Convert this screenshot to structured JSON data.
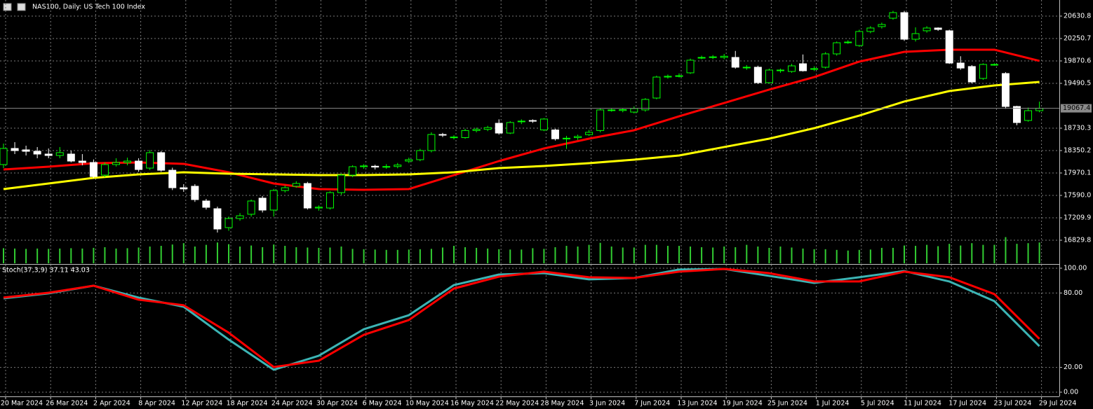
{
  "chart_data": [
    {
      "type": "candlestick",
      "title": "NAS100, Daily:  US Tech 100 Index",
      "categories": [
        "20 Mar 2024",
        null,
        null,
        null,
        "26 Mar 2024",
        null,
        null,
        null,
        "2 Apr 2024",
        null,
        null,
        null,
        "8 Apr 2024",
        null,
        null,
        null,
        "12 Apr 2024",
        null,
        null,
        null,
        "18 Apr 2024",
        null,
        null,
        null,
        "24 Apr 2024",
        null,
        null,
        null,
        "30 Apr 2024",
        null,
        null,
        null,
        "6 May 2024",
        null,
        null,
        null,
        "10 May 2024",
        null,
        null,
        null,
        "16 May 2024",
        null,
        null,
        null,
        "22 May 2024",
        null,
        null,
        null,
        "28 May 2024",
        null,
        null,
        null,
        "3 Jun 2024",
        null,
        null,
        null,
        "7 Jun 2024",
        null,
        null,
        null,
        "13 Jun 2024",
        null,
        null,
        null,
        "19 Jun 2024",
        null,
        null,
        null,
        "25 Jun 2024",
        null,
        null,
        null,
        "1 Jul 2024",
        null,
        null,
        null,
        "5 Jul 2024",
        null,
        null,
        null,
        "11 Jul 2024",
        null,
        null,
        null,
        "17 Jul 2024",
        null,
        null,
        null,
        "23 Jul 2024",
        null,
        null,
        null,
        "29 Jul 2024"
      ],
      "ohlc": [
        [
          18113,
          18469,
          18053,
          18386
        ],
        [
          18386,
          18493,
          18291,
          18350
        ],
        [
          18362,
          18433,
          18267,
          18338
        ],
        [
          18338,
          18410,
          18220,
          18291
        ],
        [
          18291,
          18386,
          18220,
          18267
        ],
        [
          18267,
          18410,
          18220,
          18315
        ],
        [
          18291,
          18350,
          18150,
          18172
        ],
        [
          18172,
          18291,
          18100,
          18148
        ],
        [
          18148,
          18200,
          17880,
          17910
        ],
        [
          17934,
          18150,
          17900,
          18113
        ],
        [
          18113,
          18220,
          18080,
          18148
        ],
        [
          18148,
          18230,
          18100,
          18172
        ],
        [
          18172,
          18220,
          17990,
          18029
        ],
        [
          18053,
          18360,
          18020,
          18315
        ],
        [
          18315,
          18340,
          17990,
          18017
        ],
        [
          18017,
          18060,
          17680,
          17720
        ],
        [
          17720,
          17780,
          17650,
          17700
        ],
        [
          17745,
          17780,
          17480,
          17519
        ],
        [
          17495,
          17530,
          17350,
          17388
        ],
        [
          17364,
          17400,
          16960,
          17020
        ],
        [
          17044,
          17230,
          16990,
          17198
        ],
        [
          17198,
          17290,
          17160,
          17245
        ],
        [
          17270,
          17520,
          17230,
          17495
        ],
        [
          17543,
          17580,
          17300,
          17341
        ],
        [
          17341,
          17700,
          17230,
          17673
        ],
        [
          17673,
          17760,
          17640,
          17720
        ],
        [
          17745,
          17830,
          17720,
          17792
        ],
        [
          17792,
          17820,
          17350,
          17376
        ],
        [
          17376,
          17420,
          17330,
          17390
        ],
        [
          17376,
          17660,
          17350,
          17637
        ],
        [
          17637,
          17960,
          17600,
          17934
        ],
        [
          17934,
          18100,
          17900,
          18077
        ],
        [
          18077,
          18120,
          18040,
          18090
        ],
        [
          18085,
          18110,
          18030,
          18070
        ],
        [
          18070,
          18120,
          18040,
          18080
        ],
        [
          18080,
          18140,
          18050,
          18105
        ],
        [
          18172,
          18230,
          18140,
          18196
        ],
        [
          18196,
          18380,
          18170,
          18350
        ],
        [
          18350,
          18660,
          18320,
          18623
        ],
        [
          18623,
          18650,
          18580,
          18615
        ],
        [
          18570,
          18610,
          18540,
          18580
        ],
        [
          18570,
          18720,
          18550,
          18690
        ],
        [
          18690,
          18740,
          18660,
          18710
        ],
        [
          18710,
          18770,
          18680,
          18740
        ],
        [
          18813,
          18880,
          18620,
          18647
        ],
        [
          18647,
          18850,
          18630,
          18826
        ],
        [
          18840,
          18880,
          18800,
          18850
        ],
        [
          18860,
          18880,
          18820,
          18855
        ],
        [
          18700,
          18900,
          18680,
          18885
        ],
        [
          18700,
          18720,
          18520,
          18550
        ],
        [
          18550,
          18600,
          18380,
          18560
        ],
        [
          18570,
          18620,
          18530,
          18590
        ],
        [
          18620,
          18700,
          18600,
          18660
        ],
        [
          18690,
          19070,
          18660,
          19040
        ],
        [
          19040,
          19070,
          19010,
          19040
        ],
        [
          19030,
          19070,
          19000,
          19045
        ],
        [
          19003,
          19100,
          18980,
          19063
        ],
        [
          19040,
          19240,
          19010,
          19218
        ],
        [
          19241,
          19620,
          19220,
          19597
        ],
        [
          19597,
          19640,
          19570,
          19610
        ],
        [
          19620,
          19660,
          19590,
          19620
        ],
        [
          19669,
          19910,
          19650,
          19883
        ],
        [
          19930,
          19960,
          19900,
          19930
        ],
        [
          19930,
          19970,
          19900,
          19940
        ],
        [
          19930,
          19990,
          19900,
          19950
        ],
        [
          19930,
          20040,
          19740,
          19764
        ],
        [
          19764,
          19800,
          19720,
          19764
        ],
        [
          19764,
          19790,
          19480,
          19502
        ],
        [
          19502,
          19740,
          19490,
          19716
        ],
        [
          19705,
          19740,
          19670,
          19716
        ],
        [
          19692,
          19820,
          19670,
          19787
        ],
        [
          19823,
          19980,
          19690,
          19704
        ],
        [
          19740,
          19780,
          19700,
          19740
        ],
        [
          19764,
          20020,
          19740,
          19990
        ],
        [
          19990,
          20200,
          19960,
          20179
        ],
        [
          20179,
          20220,
          20160,
          20191
        ],
        [
          20132,
          20400,
          20110,
          20370
        ],
        [
          20370,
          20460,
          20340,
          20429
        ],
        [
          20453,
          20520,
          20420,
          20488
        ],
        [
          20595,
          20720,
          20570,
          20690
        ],
        [
          20690,
          20720,
          20210,
          20239
        ],
        [
          20239,
          20440,
          20200,
          20334
        ],
        [
          20382,
          20460,
          20350,
          20429
        ],
        [
          20429,
          20440,
          20380,
          20405
        ],
        [
          20382,
          20400,
          19820,
          19835
        ],
        [
          19835,
          19950,
          19720,
          19750
        ],
        [
          19776,
          19800,
          19490,
          19514
        ],
        [
          19574,
          19830,
          19550,
          19811
        ],
        [
          19811,
          19830,
          19790,
          19811
        ],
        [
          19657,
          19680,
          19060,
          19098
        ],
        [
          19098,
          19110,
          18780,
          18825
        ],
        [
          18861,
          19080,
          18840,
          19027
        ],
        [
          19027,
          19180,
          19000,
          19067.4
        ]
      ],
      "volume": [
        45,
        44,
        43,
        44,
        43,
        44,
        45,
        44,
        46,
        48,
        44,
        45,
        47,
        50,
        52,
        56,
        60,
        50,
        55,
        62,
        57,
        50,
        53,
        48,
        56,
        52,
        48,
        47,
        46,
        47,
        50,
        43,
        42,
        41,
        40,
        40,
        41,
        42,
        43,
        47,
        52,
        48,
        46,
        44,
        42,
        41,
        41,
        45,
        43,
        48,
        52,
        50,
        55,
        61,
        50,
        47,
        47,
        55,
        55,
        52,
        52,
        50,
        48,
        47,
        50,
        48,
        55,
        50,
        46,
        50,
        47,
        44,
        42,
        42,
        40,
        38,
        40,
        41,
        46,
        46,
        53,
        52,
        55,
        51,
        58,
        53,
        60,
        55,
        55,
        78,
        58,
        60,
        62
      ],
      "vlim": [
        0,
        100
      ],
      "volume_color": "#32cd32",
      "bull_color": "#00ff00",
      "bear_color": "#ffffff",
      "series": [
        {
          "color": "#ff0000",
          "x": [
            0,
            4,
            8,
            12,
            16,
            20,
            24,
            28,
            32,
            36,
            40,
            44,
            48,
            52,
            56,
            60,
            64,
            68,
            72,
            76,
            80,
            84,
            88,
            92
          ],
          "values": [
            18030,
            18077,
            18136,
            18148,
            18125,
            17982,
            17792,
            17697,
            17685,
            17697,
            17934,
            18172,
            18386,
            18552,
            18695,
            18932,
            19157,
            19384,
            19597,
            19859,
            20025,
            20061,
            20061,
            19871
          ]
        },
        {
          "color": "#ffff00",
          "x": [
            0,
            4,
            8,
            12,
            16,
            20,
            24,
            28,
            32,
            36,
            40,
            44,
            48,
            52,
            56,
            60,
            64,
            68,
            72,
            76,
            80,
            84,
            88,
            92
          ],
          "values": [
            17697,
            17792,
            17887,
            17946,
            17982,
            17958,
            17946,
            17934,
            17934,
            17946,
            17982,
            18053,
            18089,
            18136,
            18196,
            18267,
            18410,
            18552,
            18730,
            18944,
            19182,
            19360,
            19455,
            19514
          ]
        }
      ],
      "last_price": 19067.4,
      "ylim": [
        16437.8,
        20904.0
      ],
      "yticks": [
        20630.8,
        20250.7,
        19870.6,
        19490.5,
        18730.3,
        18350.2,
        17970.1,
        {
          "value": 17590,
          "label": "17590.0"
        },
        17209.9,
        16829.8
      ],
      "grid": true
    },
    {
      "type": "line",
      "title": "Stoch(37,3,9) 37.11 43.03",
      "series": [
        {
          "color": "#3cb4b4",
          "x": [
            0,
            4,
            8,
            12,
            16,
            20,
            24,
            28,
            32,
            36,
            40,
            44,
            48,
            52,
            56,
            60,
            64,
            68,
            72,
            76,
            80,
            84,
            88,
            92
          ],
          "values": [
            75.7,
            79.7,
            85.9,
            76.3,
            68.9,
            42.4,
            18.1,
            29.4,
            50.8,
            62.1,
            86.4,
            94.9,
            96.0,
            91.0,
            92.1,
            98.9,
            99.4,
            93.8,
            88.1,
            92.7,
            97.7,
            89.3,
            73.4,
            37.11
          ]
        },
        {
          "color": "#ff0000",
          "x": [
            0,
            4,
            8,
            12,
            16,
            20,
            24,
            28,
            32,
            36,
            40,
            44,
            48,
            52,
            56,
            60,
            64,
            68,
            72,
            76,
            80,
            84,
            88,
            92
          ],
          "values": [
            76.3,
            80.2,
            85.9,
            74.6,
            70.1,
            48.0,
            20.3,
            25.4,
            46.3,
            58.2,
            83.6,
            93.2,
            97.2,
            92.7,
            92.1,
            97.2,
            99.4,
            96.0,
            89.3,
            89.3,
            97.2,
            92.7,
            79.1,
            43.03
          ]
        }
      ],
      "ylim": [
        -3.4,
        102.8
      ],
      "yticks": [
        {
          "value": 100,
          "label": "100.00"
        },
        {
          "value": 80,
          "label": "80.00"
        },
        {
          "value": 20,
          "label": "20.00"
        },
        {
          "value": 0,
          "label": "0.00"
        }
      ],
      "grid": true
    }
  ]
}
